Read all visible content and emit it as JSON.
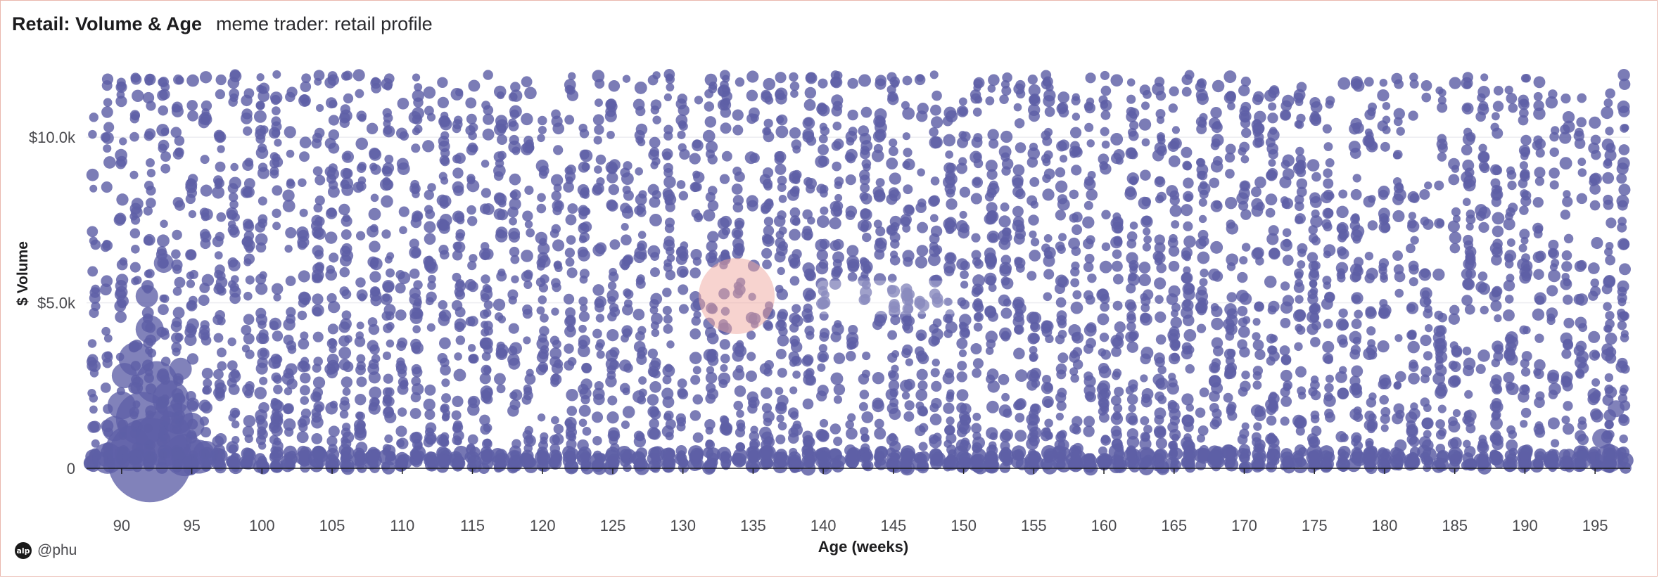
{
  "header": {
    "title": "Retail: Volume & Age",
    "subtitle": "meme trader: retail profile"
  },
  "footer": {
    "avatar_text": "alp",
    "handle": "@phu"
  },
  "colors": {
    "point": "#5e5fa6",
    "axis": "#1d1d1f",
    "grid": "#ececf0",
    "watermark": "#f0a7a0"
  },
  "chart_data": {
    "type": "scatter",
    "title": "Retail: Volume & Age",
    "subtitle": "meme trader: retail profile",
    "xlabel": "Age (weeks)",
    "ylabel": "$ Volume",
    "xlim": [
      87.5,
      197.5
    ],
    "ylim": [
      0,
      12000
    ],
    "x_ticks": [
      90,
      95,
      100,
      105,
      110,
      115,
      120,
      125,
      130,
      135,
      140,
      145,
      150,
      155,
      160,
      165,
      170,
      175,
      180,
      185,
      190,
      195
    ],
    "y_ticks": [
      0,
      5000,
      10000
    ],
    "y_tick_labels": [
      "0",
      "$5.0k",
      "$10.0k"
    ],
    "grid": true,
    "legend": "none",
    "series": [
      {
        "name": "",
        "description_range": "dense vertical strips of points at each weekly age from 88 to 197, volumes spanning 0 to about 11,900; large bubbles clustered near ages 89–95 at low volume",
        "sample_points": [
          {
            "x": 92,
            "y": 300,
            "size": "largest"
          },
          {
            "x": 91,
            "y": 1800,
            "size": "large"
          },
          {
            "x": 93,
            "y": 1200,
            "size": "large"
          },
          {
            "x": 95,
            "y": 500,
            "size": "large"
          },
          {
            "x": 89,
            "y": 400,
            "size": "medium"
          },
          {
            "x": 196,
            "y": 300,
            "size": "medium"
          },
          {
            "x": 92,
            "y": 11800,
            "size": "small"
          },
          {
            "x": 130,
            "y": 11700,
            "size": "small"
          },
          {
            "x": 170,
            "y": 11700,
            "size": "small"
          }
        ]
      }
    ]
  }
}
